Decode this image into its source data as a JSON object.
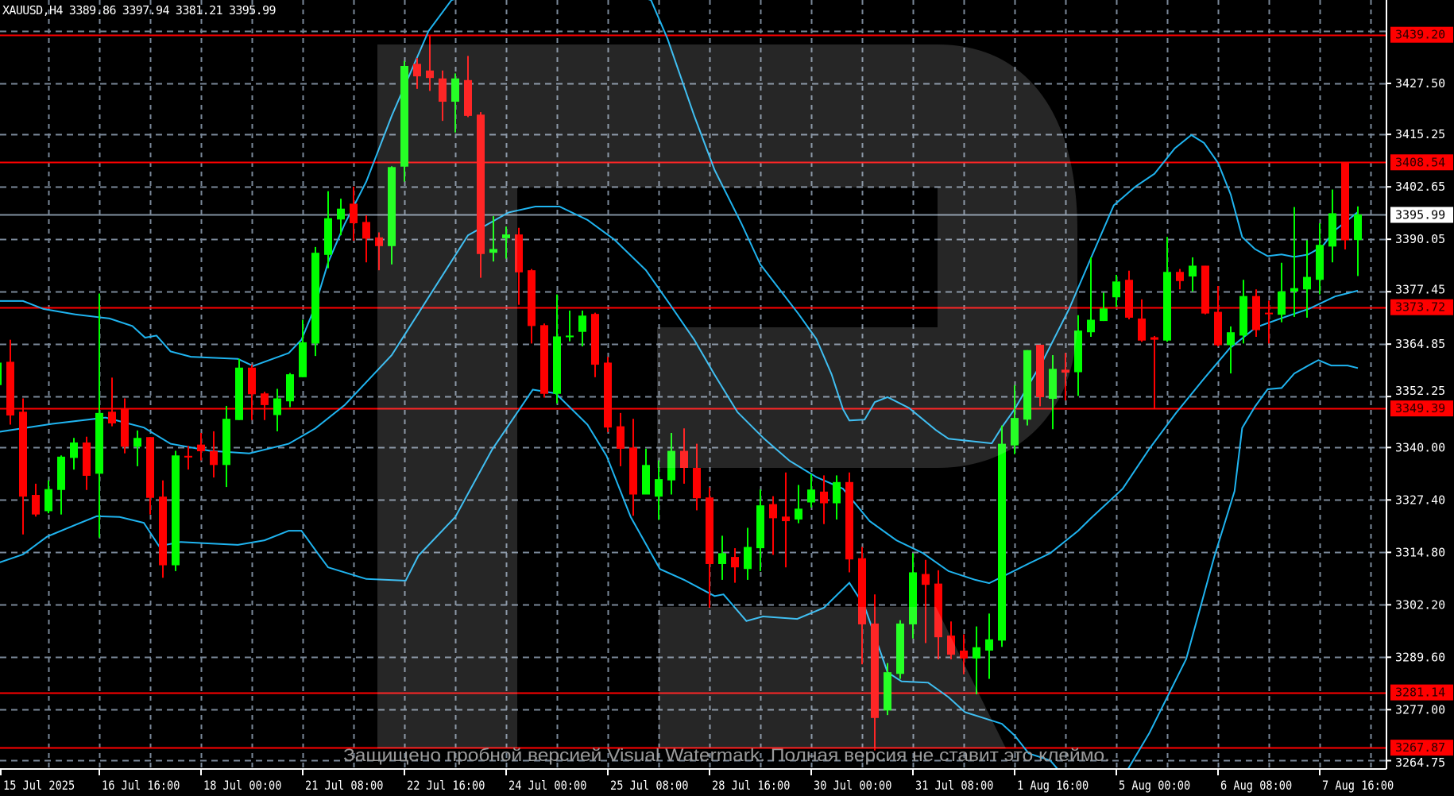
{
  "header": {
    "symbol": "XAUUSD,H4",
    "open": "3389.86",
    "high": "3397.94",
    "low": "3381.21",
    "close": "3395.99"
  },
  "colors": {
    "background": "#000000",
    "bull": "#00ff00",
    "bear": "#ff0000",
    "grid": "#7a8899",
    "bands": "#1fb4f0",
    "level": "#ff0000",
    "bid_line": "#8090a0",
    "axis": "#ffffff"
  },
  "watermark_text": "Защищено пробной версией Visual Watermark. Полная версия не ставит это клеймо.",
  "chart_data": {
    "type": "candlestick",
    "timeframe": "H4",
    "ylim": [
      3262.0,
      3446.0
    ],
    "grid": true,
    "y_ticks": [
      "3427.50",
      "3415.25",
      "3402.65",
      "3390.05",
      "3377.45",
      "3364.85",
      "3352.25",
      "3340.00",
      "3327.40",
      "3314.80",
      "3302.20",
      "3289.60",
      "3277.00",
      "3264.75"
    ],
    "x_labels": [
      {
        "bar": 0,
        "text": "15 Jul 2025"
      },
      {
        "bar": 8,
        "text": "16 Jul 16:00"
      },
      {
        "bar": 16,
        "text": "18 Jul 00:00"
      },
      {
        "bar": 24,
        "text": "21 Jul 08:00"
      },
      {
        "bar": 32,
        "text": "22 Jul 16:00"
      },
      {
        "bar": 40,
        "text": "24 Jul 00:00"
      },
      {
        "bar": 48,
        "text": "25 Jul 08:00"
      },
      {
        "bar": 56,
        "text": "28 Jul 16:00"
      },
      {
        "bar": 64,
        "text": "30 Jul 00:00"
      },
      {
        "bar": 72,
        "text": "31 Jul 08:00"
      },
      {
        "bar": 80,
        "text": "1 Aug 16:00"
      },
      {
        "bar": 88,
        "text": "5 Aug 00:00"
      },
      {
        "bar": 96,
        "text": "6 Aug 08:00"
      },
      {
        "bar": 104,
        "text": "7 Aug 16:00"
      }
    ],
    "levels": [
      "3439.20",
      "3408.54",
      "3373.72",
      "3349.39",
      "3281.14",
      "3267.87"
    ],
    "bid": "3395.99",
    "ohlc": [
      [
        3355.0,
        3362.0,
        3352.0,
        3360.4
      ],
      [
        3360.6,
        3365.9,
        3345.5,
        3347.7
      ],
      [
        3348.6,
        3351.8,
        3319.1,
        3328.2
      ],
      [
        3328.6,
        3331.3,
        3323.4,
        3323.9
      ],
      [
        3324.7,
        3332.1,
        3324.2,
        3330.0
      ],
      [
        3329.8,
        3338.1,
        3323.9,
        3337.8
      ],
      [
        3337.5,
        3342.3,
        3334.7,
        3341.2
      ],
      [
        3341.2,
        3342.6,
        3329.8,
        3333.2
      ],
      [
        3333.7,
        3377.0,
        3318.4,
        3348.3
      ],
      [
        3348.6,
        3356.8,
        3345.1,
        3345.8
      ],
      [
        3349.2,
        3351.8,
        3338.6,
        3340.2
      ],
      [
        3340.2,
        3344.1,
        3335.5,
        3342.3
      ],
      [
        3342.5,
        3342.5,
        3323.9,
        3327.9
      ],
      [
        3328.2,
        3332.1,
        3308.7,
        3311.7
      ],
      [
        3311.7,
        3339.2,
        3310.3,
        3338.1
      ],
      [
        3338.0,
        3340.4,
        3334.7,
        3337.6
      ],
      [
        3340.7,
        3343.5,
        3336.9,
        3339.1
      ],
      [
        3339.2,
        3343.9,
        3332.8,
        3335.8
      ],
      [
        3335.8,
        3350.0,
        3330.5,
        3346.9
      ],
      [
        3346.6,
        3361.3,
        3346.6,
        3359.2
      ],
      [
        3359.2,
        3359.9,
        3346.6,
        3352.8
      ],
      [
        3353.0,
        3353.4,
        3346.6,
        3350.2
      ],
      [
        3347.8,
        3354.1,
        3343.9,
        3351.8
      ],
      [
        3351.1,
        3357.9,
        3349.7,
        3357.6
      ],
      [
        3356.9,
        3370.7,
        3356.9,
        3365.3
      ],
      [
        3365.0,
        3388.2,
        3362.0,
        3386.8
      ],
      [
        3386.3,
        3401.6,
        3383.1,
        3395.1
      ],
      [
        3394.8,
        3399.8,
        3391.0,
        3397.4
      ],
      [
        3398.6,
        3402.7,
        3389.7,
        3393.9
      ],
      [
        3394.2,
        3395.8,
        3384.5,
        3390.2
      ],
      [
        3390.5,
        3391.7,
        3382.6,
        3388.4
      ],
      [
        3388.4,
        3407.6,
        3384.0,
        3407.4
      ],
      [
        3407.5,
        3432.9,
        3403.9,
        3431.7
      ],
      [
        3432.2,
        3433.6,
        3426.2,
        3429.2
      ],
      [
        3430.6,
        3439.0,
        3425.7,
        3428.8
      ],
      [
        3428.7,
        3430.6,
        3418.5,
        3423.1
      ],
      [
        3423.1,
        3429.9,
        3415.7,
        3428.7
      ],
      [
        3428.3,
        3434.1,
        3419.4,
        3419.7
      ],
      [
        3420.0,
        3420.6,
        3380.8,
        3386.5
      ],
      [
        3386.8,
        3395.6,
        3384.7,
        3387.7
      ],
      [
        3390.3,
        3393.1,
        3385.4,
        3391.2
      ],
      [
        3391.2,
        3392.8,
        3374.3,
        3382.1
      ],
      [
        3382.6,
        3382.9,
        3365.0,
        3369.2
      ],
      [
        3369.4,
        3369.8,
        3352.0,
        3352.9
      ],
      [
        3352.9,
        3376.8,
        3350.6,
        3366.7
      ],
      [
        3366.5,
        3372.9,
        3365.5,
        3366.9
      ],
      [
        3367.8,
        3372.9,
        3364.3,
        3371.7
      ],
      [
        3372.1,
        3372.4,
        3356.9,
        3359.9
      ],
      [
        3360.4,
        3361.8,
        3343.7,
        3344.8
      ],
      [
        3345.1,
        3348.3,
        3335.5,
        3339.7
      ],
      [
        3340.0,
        3346.9,
        3323.6,
        3328.7
      ],
      [
        3328.7,
        3339.7,
        3328.7,
        3335.8
      ],
      [
        3328.2,
        3336.9,
        3322.6,
        3332.4
      ],
      [
        3332.1,
        3343.5,
        3328.7,
        3339.2
      ],
      [
        3339.2,
        3344.6,
        3331.3,
        3335.1
      ],
      [
        3335.1,
        3340.9,
        3324.9,
        3327.8
      ],
      [
        3328.0,
        3330.4,
        3301.5,
        3312.0
      ],
      [
        3312.0,
        3318.8,
        3308.2,
        3314.6
      ],
      [
        3313.7,
        3315.8,
        3307.5,
        3311.2
      ],
      [
        3310.8,
        3320.7,
        3308.2,
        3316.1
      ],
      [
        3315.8,
        3329.9,
        3310.3,
        3326.1
      ],
      [
        3326.4,
        3328.3,
        3314.2,
        3323.0
      ],
      [
        3323.4,
        3334.0,
        3311.2,
        3322.3
      ],
      [
        3322.7,
        3331.0,
        3321.8,
        3325.3
      ],
      [
        3326.8,
        3333.6,
        3325.6,
        3329.9
      ],
      [
        3329.4,
        3333.3,
        3321.6,
        3326.6
      ],
      [
        3326.6,
        3333.3,
        3322.7,
        3331.7
      ],
      [
        3331.7,
        3334.0,
        3310.0,
        3313.1
      ],
      [
        3313.4,
        3316.1,
        3287.9,
        3297.5
      ],
      [
        3297.7,
        3304.7,
        3267.2,
        3275.0
      ],
      [
        3276.8,
        3288.2,
        3275.7,
        3286.0
      ],
      [
        3285.6,
        3298.5,
        3284.4,
        3297.7
      ],
      [
        3297.5,
        3314.6,
        3294.1,
        3310.0
      ],
      [
        3309.6,
        3313.0,
        3293.0,
        3307.0
      ],
      [
        3307.3,
        3310.5,
        3289.1,
        3294.4
      ],
      [
        3294.8,
        3298.2,
        3289.1,
        3290.2
      ],
      [
        3291.2,
        3295.1,
        3285.5,
        3289.3
      ],
      [
        3289.3,
        3297.0,
        3280.7,
        3292.0
      ],
      [
        3291.2,
        3300.1,
        3284.4,
        3293.9
      ],
      [
        3293.6,
        3345.3,
        3292.1,
        3340.9
      ],
      [
        3340.5,
        3355.0,
        3338.4,
        3347.1
      ],
      [
        3346.7,
        3363.4,
        3345.3,
        3363.4
      ],
      [
        3364.7,
        3364.7,
        3349.9,
        3352.1
      ],
      [
        3351.7,
        3362.2,
        3344.4,
        3358.9
      ],
      [
        3358.7,
        3362.7,
        3351.3,
        3358.0
      ],
      [
        3358.1,
        3371.8,
        3352.4,
        3368.1
      ],
      [
        3367.7,
        3385.7,
        3366.6,
        3370.7
      ],
      [
        3370.4,
        3377.2,
        3370.4,
        3373.4
      ],
      [
        3376.1,
        3381.5,
        3373.8,
        3379.9
      ],
      [
        3380.3,
        3382.5,
        3370.8,
        3371.2
      ],
      [
        3371.0,
        3375.6,
        3365.4,
        3365.7
      ],
      [
        3366.5,
        3366.8,
        3349.2,
        3365.9
      ],
      [
        3365.7,
        3390.6,
        3365.4,
        3382.2
      ],
      [
        3382.2,
        3382.9,
        3378.0,
        3380.0
      ],
      [
        3381.1,
        3385.7,
        3377.5,
        3383.7
      ],
      [
        3383.7,
        3383.7,
        3372.0,
        3372.2
      ],
      [
        3372.6,
        3378.8,
        3364.3,
        3364.6
      ],
      [
        3364.6,
        3369.1,
        3357.8,
        3367.7
      ],
      [
        3366.9,
        3380.3,
        3365.0,
        3376.4
      ],
      [
        3376.4,
        3378.0,
        3366.6,
        3368.2
      ],
      [
        3372.4,
        3375.3,
        3365.0,
        3372.1
      ],
      [
        3371.9,
        3384.4,
        3370.1,
        3377.5
      ],
      [
        3377.5,
        3397.8,
        3371.4,
        3378.3
      ],
      [
        3378.0,
        3389.8,
        3371.2,
        3381.0
      ],
      [
        3380.3,
        3393.9,
        3376.8,
        3388.7
      ],
      [
        3388.3,
        3402.0,
        3384.5,
        3396.3
      ],
      [
        3408.7,
        3408.7,
        3387.6,
        3389.8
      ],
      [
        3389.86,
        3397.94,
        3381.21,
        3395.99
      ]
    ],
    "bollinger": {
      "upper": [
        [
          0,
          3375.2
        ],
        [
          2,
          3375.2
        ],
        [
          3.6,
          3373.3
        ],
        [
          6.1,
          3372
        ],
        [
          8.8,
          3371
        ],
        [
          10.6,
          3369.2
        ],
        [
          11.6,
          3366.4
        ],
        [
          12.5,
          3366.9
        ],
        [
          13.6,
          3363.1
        ],
        [
          15.2,
          3361.8
        ],
        [
          18.9,
          3361.3
        ],
        [
          20.1,
          3359.6
        ],
        [
          22.9,
          3362.7
        ],
        [
          23.9,
          3365.9
        ],
        [
          24.9,
          3373.3
        ],
        [
          26,
          3384.5
        ],
        [
          27.3,
          3393.7
        ],
        [
          29,
          3403.9
        ],
        [
          31,
          3419.7
        ],
        [
          33.9,
          3440.1
        ],
        [
          35.7,
          3447.5
        ],
        [
          40,
          3452
        ],
        [
          44,
          3454
        ],
        [
          48,
          3451
        ],
        [
          51.4,
          3447.5
        ],
        [
          52.7,
          3438.2
        ],
        [
          54.8,
          3419.7
        ],
        [
          56.4,
          3406.7
        ],
        [
          58.5,
          3393.9
        ],
        [
          60,
          3384
        ],
        [
          63,
          3372.1
        ],
        [
          64.4,
          3366.1
        ],
        [
          65.6,
          3357.6
        ],
        [
          66.5,
          3349.2
        ],
        [
          67,
          3346.5
        ],
        [
          68.2,
          3346.7
        ],
        [
          69,
          3350.9
        ],
        [
          70,
          3352.1
        ],
        [
          71.7,
          3349.5
        ],
        [
          73.8,
          3344.2
        ],
        [
          74.8,
          3342.1
        ],
        [
          78.2,
          3341
        ],
        [
          79,
          3344.9
        ],
        [
          80,
          3349.2
        ],
        [
          82.3,
          3361.3
        ],
        [
          84.3,
          3373.4
        ],
        [
          86,
          3385.5
        ],
        [
          87.8,
          3398.2
        ],
        [
          89.5,
          3402.7
        ],
        [
          91,
          3405.8
        ],
        [
          92.6,
          3411.9
        ],
        [
          93.9,
          3415.1
        ],
        [
          94.9,
          3413.2
        ],
        [
          96,
          3408.4
        ],
        [
          97,
          3400.8
        ],
        [
          97.9,
          3390.6
        ],
        [
          98.9,
          3387.7
        ],
        [
          99.9,
          3386
        ],
        [
          101,
          3386.4
        ],
        [
          102,
          3385.8
        ],
        [
          103.1,
          3386.4
        ],
        [
          104.2,
          3388.3
        ],
        [
          105.2,
          3392.2
        ],
        [
          107,
          3396.6
        ]
      ],
      "middle": [
        [
          0,
          3343.7
        ],
        [
          4.3,
          3345.7
        ],
        [
          8.5,
          3347.2
        ],
        [
          11.5,
          3344.8
        ],
        [
          13.6,
          3340.9
        ],
        [
          16.7,
          3339.2
        ],
        [
          19.8,
          3338.6
        ],
        [
          22.9,
          3340.9
        ],
        [
          25,
          3344.6
        ],
        [
          27.3,
          3350.2
        ],
        [
          29,
          3355.7
        ],
        [
          31,
          3362.2
        ],
        [
          33.9,
          3376.1
        ],
        [
          37,
          3391
        ],
        [
          40.2,
          3396.5
        ],
        [
          42.3,
          3397.9
        ],
        [
          44.2,
          3397.9
        ],
        [
          46.4,
          3394.7
        ],
        [
          48.5,
          3390
        ],
        [
          51,
          3382.6
        ],
        [
          52.7,
          3375.2
        ],
        [
          54.8,
          3365.9
        ],
        [
          56.4,
          3357.5
        ],
        [
          58.2,
          3348.5
        ],
        [
          60.3,
          3342.1
        ],
        [
          62.3,
          3336.8
        ],
        [
          64.4,
          3332.9
        ],
        [
          66.5,
          3330.1
        ],
        [
          68.6,
          3322.3
        ],
        [
          70.7,
          3317.7
        ],
        [
          72.8,
          3314.6
        ],
        [
          74.8,
          3310.3
        ],
        [
          76.9,
          3308.2
        ],
        [
          78,
          3307.4
        ],
        [
          79,
          3308.9
        ],
        [
          81.1,
          3312.1
        ],
        [
          82.8,
          3314.6
        ],
        [
          85,
          3320
        ],
        [
          86,
          3323
        ],
        [
          88.5,
          3330.1
        ],
        [
          90.6,
          3339.7
        ],
        [
          92.7,
          3348.3
        ],
        [
          94.8,
          3356.2
        ],
        [
          96.9,
          3363.8
        ],
        [
          99,
          3368.9
        ],
        [
          101.1,
          3371.2
        ],
        [
          103.2,
          3373.4
        ],
        [
          105.2,
          3376.3
        ],
        [
          107,
          3377.7
        ]
      ],
      "lower": [
        [
          0,
          3312.2
        ],
        [
          2,
          3314.3
        ],
        [
          3.9,
          3318.6
        ],
        [
          6.1,
          3321.4
        ],
        [
          7.8,
          3323.5
        ],
        [
          9.6,
          3323.3
        ],
        [
          11.5,
          3321.9
        ],
        [
          12.7,
          3316.3
        ],
        [
          14.4,
          3317.3
        ],
        [
          18.9,
          3316.6
        ],
        [
          21,
          3317.7
        ],
        [
          22.9,
          3320
        ],
        [
          23.9,
          3320
        ],
        [
          25.2,
          3314.5
        ],
        [
          26,
          3311.2
        ],
        [
          29,
          3308.4
        ],
        [
          32.1,
          3308
        ],
        [
          33.1,
          3314
        ],
        [
          36,
          3323.3
        ],
        [
          38.9,
          3339.5
        ],
        [
          42.1,
          3353.9
        ],
        [
          43.9,
          3353
        ],
        [
          46.4,
          3345.5
        ],
        [
          47.9,
          3338
        ],
        [
          49.8,
          3323.3
        ],
        [
          52.1,
          3310.8
        ],
        [
          54,
          3308.2
        ],
        [
          56.4,
          3304.3
        ],
        [
          57.1,
          3304.7
        ],
        [
          58.9,
          3298.3
        ],
        [
          60.2,
          3299.4
        ],
        [
          62.9,
          3298.8
        ],
        [
          65,
          3301.5
        ],
        [
          67,
          3307.5
        ],
        [
          68.2,
          3301.8
        ],
        [
          70,
          3286
        ],
        [
          71.1,
          3283.8
        ],
        [
          73.2,
          3283.5
        ],
        [
          74.8,
          3280
        ],
        [
          76.1,
          3276.4
        ],
        [
          79,
          3273.6
        ],
        [
          80,
          3270.8
        ],
        [
          81.1,
          3266.5
        ],
        [
          82.8,
          3264.8
        ],
        [
          85,
          3257
        ],
        [
          88,
          3258
        ],
        [
          90.6,
          3271.4
        ],
        [
          93.5,
          3289.2
        ],
        [
          95.7,
          3313.7
        ],
        [
          97.3,
          3329.5
        ],
        [
          97.9,
          3344.7
        ],
        [
          98.9,
          3349.8
        ],
        [
          99.9,
          3354
        ],
        [
          101,
          3354.3
        ],
        [
          102,
          3357.8
        ],
        [
          103.1,
          3359.7
        ],
        [
          103.9,
          3361
        ],
        [
          104.9,
          3359.7
        ],
        [
          106.2,
          3359.7
        ],
        [
          107,
          3359.1
        ]
      ]
    }
  }
}
